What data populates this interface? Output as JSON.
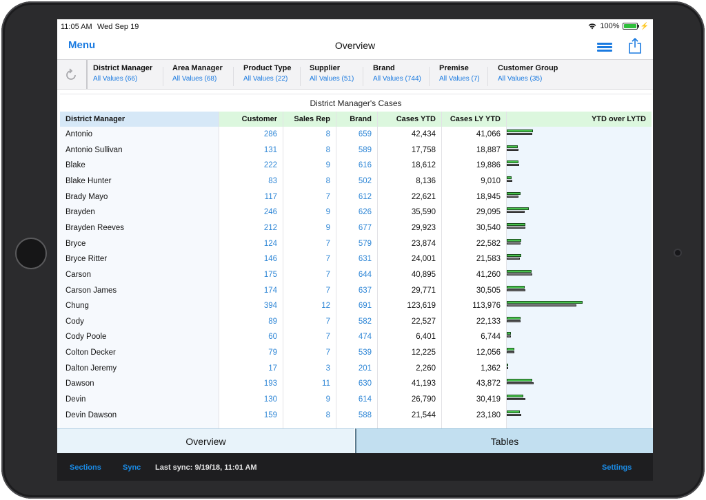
{
  "status": {
    "time": "11:05 AM",
    "date": "Wed Sep 19",
    "battery": "100%"
  },
  "nav": {
    "menu": "Menu",
    "title": "Overview"
  },
  "filters": [
    {
      "name": "District Manager",
      "value": "All Values (66)"
    },
    {
      "name": "Area Manager",
      "value": "All Values (68)"
    },
    {
      "name": "Product Type",
      "value": "All Values (22)"
    },
    {
      "name": "Supplier",
      "value": "All Values (51)"
    },
    {
      "name": "Brand",
      "value": "All Values (744)"
    },
    {
      "name": "Premise",
      "value": "All Values (7)"
    },
    {
      "name": "Customer Group",
      "value": "All Values (35)"
    }
  ],
  "table": {
    "caption": "District Manager's Cases",
    "headers": [
      "District Manager",
      "Customer",
      "Sales Rep",
      "Brand",
      "Cases YTD",
      "Cases LY YTD",
      "YTD over LYTD"
    ],
    "rows": [
      [
        "Antonio",
        "286",
        "8",
        "659",
        "42,434",
        "41,066"
      ],
      [
        "Antonio Sullivan",
        "131",
        "8",
        "589",
        "17,758",
        "18,887"
      ],
      [
        "Blake",
        "222",
        "9",
        "616",
        "18,612",
        "19,886"
      ],
      [
        "Blake Hunter",
        "83",
        "8",
        "502",
        "8,136",
        "9,010"
      ],
      [
        "Brady Mayo",
        "117",
        "7",
        "612",
        "22,621",
        "18,945"
      ],
      [
        "Brayden",
        "246",
        "9",
        "626",
        "35,590",
        "29,095"
      ],
      [
        "Brayden Reeves",
        "212",
        "9",
        "677",
        "29,923",
        "30,540"
      ],
      [
        "Bryce",
        "124",
        "7",
        "579",
        "23,874",
        "22,582"
      ],
      [
        "Bryce Ritter",
        "146",
        "7",
        "631",
        "24,001",
        "21,583"
      ],
      [
        "Carson",
        "175",
        "7",
        "644",
        "40,895",
        "41,260"
      ],
      [
        "Carson James",
        "174",
        "7",
        "637",
        "29,771",
        "30,505"
      ],
      [
        "Chung",
        "394",
        "12",
        "691",
        "123,619",
        "113,976"
      ],
      [
        "Cody",
        "89",
        "7",
        "582",
        "22,527",
        "22,133"
      ],
      [
        "Cody Poole",
        "60",
        "7",
        "474",
        "6,401",
        "6,744"
      ],
      [
        "Colton Decker",
        "79",
        "7",
        "539",
        "12,225",
        "12,056"
      ],
      [
        "Dalton Jeremy",
        "17",
        "3",
        "201",
        "2,260",
        "1,362"
      ],
      [
        "Dawson",
        "193",
        "11",
        "630",
        "41,193",
        "43,872"
      ],
      [
        "Devin",
        "130",
        "9",
        "614",
        "26,790",
        "30,419"
      ],
      [
        "Devin Dawson",
        "159",
        "8",
        "588",
        "21,544",
        "23,180"
      ]
    ]
  },
  "tabs": {
    "overview": "Overview",
    "tables": "Tables"
  },
  "footer": {
    "sections": "Sections",
    "sync": "Sync",
    "last_sync": "Last sync: 9/19/18, 11:01 AM",
    "settings": "Settings"
  },
  "colors": {
    "accent": "#1a7ae0",
    "link": "#2e86d6",
    "ytd_bar": "#47c24c",
    "lytd_bar": "#6d6d6d",
    "header_green": "#dcf7de",
    "header_blue": "#d6e8f7"
  }
}
